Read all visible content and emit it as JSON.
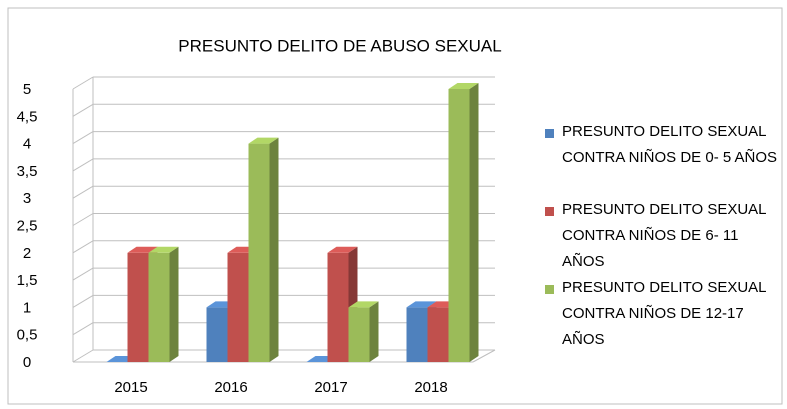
{
  "chart_data": {
    "type": "bar3d",
    "title": "PRESUNTO DELITO DE ABUSO SEXUAL",
    "categories": [
      "2015",
      "2016",
      "2017",
      "2018"
    ],
    "series": [
      {
        "name": "PRESUNTO DELITO SEXUAL CONTRA NIÑOS DE 0- 5 AÑOS",
        "color": "#4f81bd",
        "values": [
          0,
          1,
          0,
          1
        ]
      },
      {
        "name": "PRESUNTO DELITO SEXUAL CONTRA NIÑOS DE 6- 11 AÑOS",
        "color": "#c0504d",
        "values": [
          2,
          2,
          2,
          1
        ]
      },
      {
        "name": "PRESUNTO DELITO SEXUAL CONTRA NIÑOS DE 12-17 AÑOS",
        "color": "#9bbb59",
        "values": [
          2,
          4,
          1,
          5
        ]
      }
    ],
    "ylim": [
      0,
      5
    ],
    "yticks": [
      0,
      {
        "value": 0.5,
        "label": "0,5"
      },
      1,
      {
        "value": 1.5,
        "label": "1,5"
      },
      2,
      {
        "value": 2.5,
        "label": "2,5"
      },
      3,
      {
        "value": 3.5,
        "label": "3,5"
      },
      4,
      {
        "value": 4.5,
        "label": "4,5"
      },
      5
    ],
    "grid": true,
    "legend": "right"
  }
}
